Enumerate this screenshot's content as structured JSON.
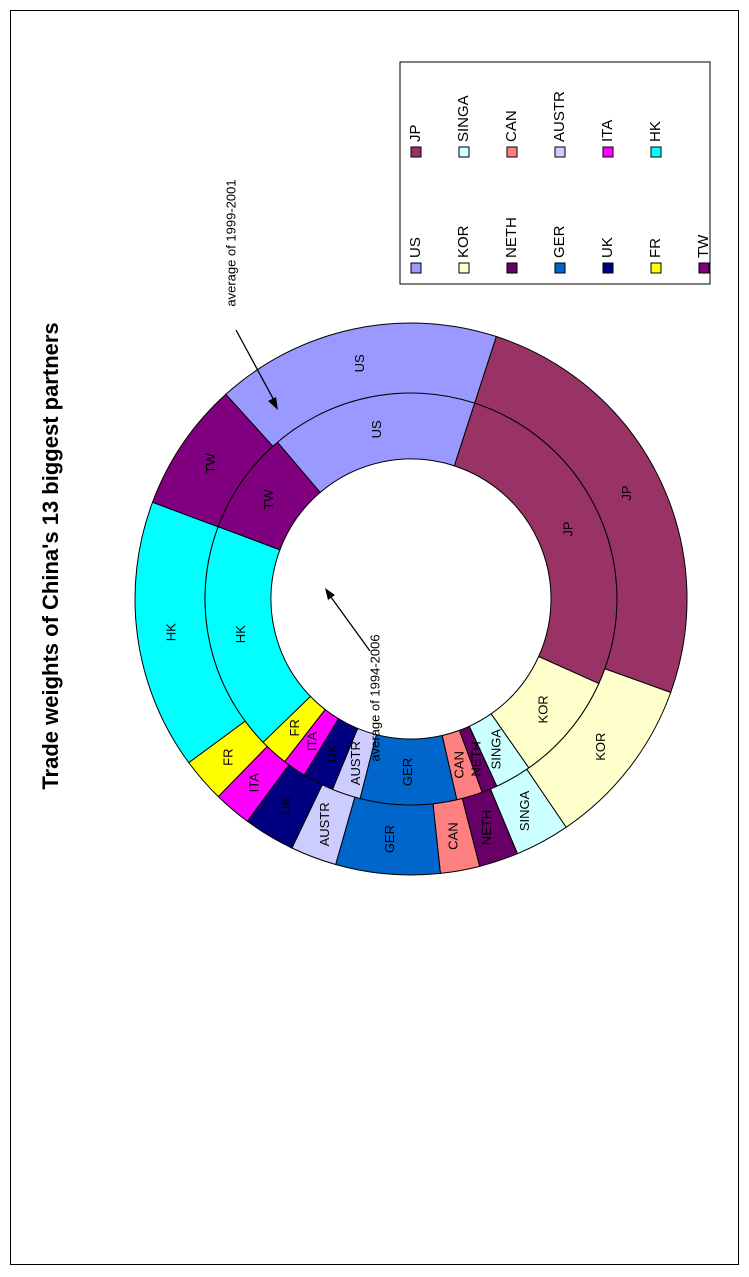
{
  "chart_data": {
    "type": "pie",
    "subtype": "doughnut",
    "title": "Trade weights of China's 13 biggest partners",
    "categories": [
      "JP",
      "KOR",
      "SINGA",
      "NETH",
      "CAN",
      "GER",
      "AUSTR",
      "UK",
      "ITA",
      "FR",
      "HK",
      "TW",
      "US"
    ],
    "colors": {
      "US": "#9999ff",
      "JP": "#993366",
      "KOR": "#ffffcc",
      "SINGA": "#ccffff",
      "NETH": "#660066",
      "CAN": "#ff8080",
      "GER": "#0066cc",
      "AUSTR": "#ccccff",
      "UK": "#000080",
      "ITA": "#ff00ff",
      "FR": "#ffff00",
      "HK": "#00ffff",
      "TW": "#800080"
    },
    "series": [
      {
        "name": "average of 1994-2006",
        "ring": "inner",
        "values": [
          26.2,
          8.4,
          2.8,
          1.2,
          2.0,
          7.4,
          2.2,
          2.4,
          1.8,
          2.2,
          17.6,
          7.9,
          15.9
        ]
      },
      {
        "name": "average of 1999-2001",
        "ring": "outer",
        "values": [
          25.5,
          10.0,
          3.2,
          2.3,
          2.3,
          6.1,
          2.7,
          3.0,
          2.2,
          2.6,
          15.8,
          7.6,
          16.7
        ]
      }
    ],
    "legend": {
      "placement": "right",
      "items": [
        "US",
        "JP",
        "KOR",
        "SINGA",
        "NETH",
        "CAN",
        "GER",
        "AUSTR",
        "UK",
        "ITA",
        "FR",
        "HK",
        "TW"
      ]
    },
    "annotations": [
      "average of 1999-2001",
      "average of 1994-2006"
    ]
  }
}
